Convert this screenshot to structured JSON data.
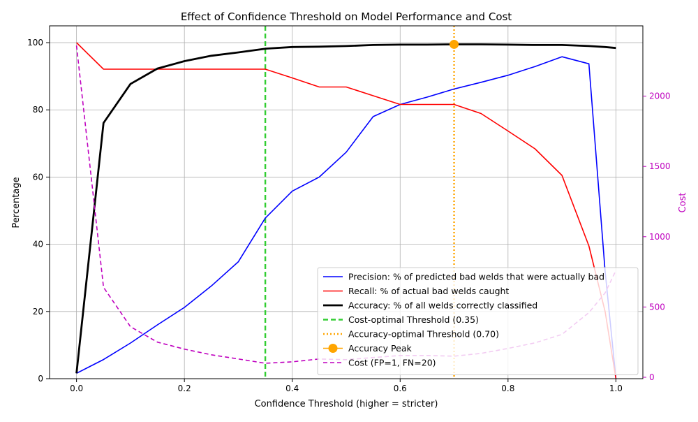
{
  "chart_data": {
    "type": "line",
    "title": "Effect of Confidence Threshold on Model Performance and Cost",
    "xlabel": "Confidence Threshold (higher = stricter)",
    "ylabel": "Percentage",
    "y2label": "Cost",
    "xlim": [
      -0.05,
      1.05
    ],
    "ylim": [
      0,
      105
    ],
    "y2lim": [
      -10,
      2500
    ],
    "xticks": [
      0.0,
      0.2,
      0.4,
      0.6,
      0.8,
      1.0
    ],
    "xtick_labels": [
      "0.0",
      "0.2",
      "0.4",
      "0.6",
      "0.8",
      "1.0"
    ],
    "yticks": [
      0,
      20,
      40,
      60,
      80,
      100
    ],
    "ytick_labels": [
      "0",
      "20",
      "40",
      "60",
      "80",
      "100"
    ],
    "y2ticks": [
      0,
      500,
      1000,
      1500,
      2000
    ],
    "y2tick_labels": [
      "0",
      "500",
      "1000",
      "1500",
      "2000"
    ],
    "grid": true,
    "legend_position": "bottom-right",
    "x": [
      0.0,
      0.05,
      0.1,
      0.15,
      0.2,
      0.25,
      0.3,
      0.35,
      0.4,
      0.45,
      0.5,
      0.55,
      0.6,
      0.65,
      0.7,
      0.75,
      0.8,
      0.85,
      0.9,
      0.95,
      0.98,
      1.0
    ],
    "series": [
      {
        "name": "Precision: % of predicted bad welds that were actually bad",
        "axis": "left",
        "color": "#0000ff",
        "width": 1.6,
        "dash": "",
        "values": [
          1.6,
          5.7,
          10.6,
          16.0,
          21.2,
          27.6,
          34.8,
          47.8,
          55.8,
          60.0,
          67.4,
          78.0,
          81.6,
          83.8,
          86.2,
          88.2,
          90.3,
          92.9,
          95.8,
          93.7,
          32.0,
          0.0
        ]
      },
      {
        "name": "Recall: % of actual bad welds caught",
        "axis": "left",
        "color": "#ff0000",
        "width": 1.6,
        "dash": "",
        "values": [
          100.0,
          92.1,
          92.1,
          92.1,
          92.1,
          92.1,
          92.1,
          92.1,
          89.5,
          86.8,
          86.8,
          84.2,
          81.6,
          81.6,
          81.6,
          78.9,
          73.7,
          68.4,
          60.5,
          39.5,
          20.0,
          0.0
        ]
      },
      {
        "name": "Accuracy: % of all welds correctly classified",
        "axis": "left",
        "color": "#000000",
        "width": 2.8,
        "dash": "",
        "values": [
          1.6,
          76.1,
          87.7,
          92.3,
          94.5,
          96.1,
          97.1,
          98.2,
          98.7,
          98.8,
          99.0,
          99.3,
          99.4,
          99.4,
          99.5,
          99.5,
          99.4,
          99.3,
          99.3,
          99.0,
          98.7,
          98.4
        ]
      },
      {
        "name": "Cost (FP=1, FN=20)",
        "axis": "right",
        "color": "#bf00bf",
        "width": 1.6,
        "dash": "6,4",
        "values": [
          2360,
          640,
          360,
          250,
          200,
          160,
          130,
          100,
          110,
          130,
          125,
          140,
          155,
          155,
          150,
          170,
          205,
          245,
          305,
          460,
          600,
          760
        ]
      }
    ],
    "vlines": [
      {
        "name": "Cost-optimal Threshold (0.35)",
        "x": 0.35,
        "color": "#32cd32",
        "width": 2.4,
        "dash": "7,4"
      },
      {
        "name": "Accuracy-optimal Threshold (0.70)",
        "x": 0.7,
        "color": "#ffa500",
        "width": 2.4,
        "dash": "2,3"
      }
    ],
    "marker": {
      "name": "Accuracy Peak",
      "x": 0.7,
      "y": 99.5,
      "color": "#ffa500"
    }
  }
}
